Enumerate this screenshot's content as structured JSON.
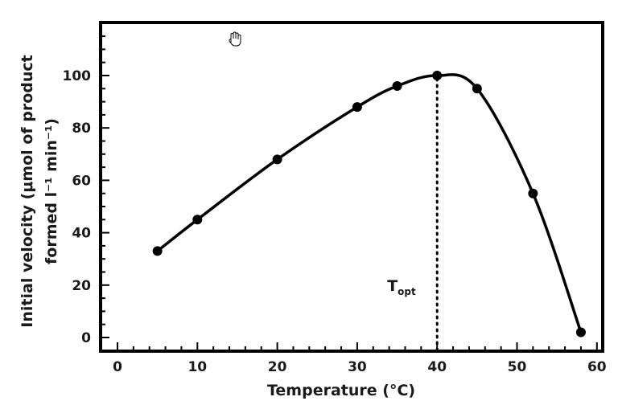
{
  "chart_data": {
    "type": "line",
    "xlabel": "Temperature (°C)",
    "ylabel_line1": "Initial velocity (μmol of product",
    "ylabel_line2": "formed l⁻¹ min⁻¹)",
    "xlim": [
      -2,
      60
    ],
    "ylim": [
      -5,
      120
    ],
    "xticks": [
      0,
      10,
      20,
      30,
      40,
      50,
      60
    ],
    "yticks": [
      0,
      20,
      40,
      60,
      80,
      100
    ],
    "x_minor_step": 2,
    "y_minor_step": 5,
    "grid": false,
    "line_color": "#000000",
    "series": [
      {
        "x": [
          5,
          10,
          20,
          30,
          35,
          40,
          45,
          52,
          58
        ],
        "y": [
          33,
          45,
          68,
          88,
          96,
          100,
          95,
          55,
          2
        ]
      }
    ],
    "annotation": {
      "label": "T",
      "subscript": "opt",
      "x": 40
    }
  },
  "cursor": {
    "icon": "hand-cursor-icon"
  }
}
